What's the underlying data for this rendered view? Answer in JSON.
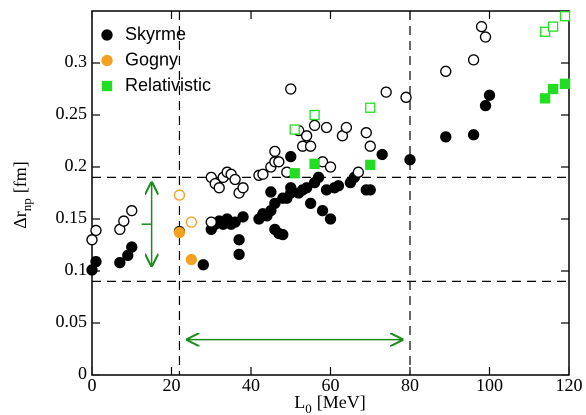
{
  "chart_data": {
    "type": "scatter",
    "xlabel": "L",
    "xlabel_sub": "0",
    "xlabel_unit": "[MeV]",
    "ylabel": "Δr",
    "ylabel_sub": "np",
    "ylabel_unit": "[fm]",
    "xlim": [
      0,
      120
    ],
    "ylim": [
      0,
      0.35
    ],
    "xticks": [
      0,
      20,
      40,
      60,
      80,
      100,
      120
    ],
    "yticks": [
      0,
      0.05,
      0.1,
      0.15,
      0.2,
      0.25,
      0.3
    ],
    "legend": "upper left",
    "vlines": [
      22,
      80
    ],
    "hlines": [
      0.09,
      0.19
    ],
    "arrows": [
      {
        "x": [
          15,
          15
        ],
        "y": [
          0.105,
          0.185
        ],
        "color": "#1a8c1a"
      },
      {
        "x": [
          24,
          78
        ],
        "y": [
          0.034,
          0.034
        ],
        "color": "#1a8c1a"
      }
    ],
    "series": [
      {
        "name": "Skyrme",
        "color": "#000000",
        "marker": "circle",
        "filled": true,
        "x": [
          0,
          1,
          7,
          9,
          10,
          22,
          28,
          30,
          31,
          32,
          33,
          34,
          35,
          36,
          37,
          37,
          38,
          42,
          43,
          44,
          45,
          45,
          46,
          46,
          47,
          48,
          48,
          49,
          50,
          50,
          50,
          52,
          53,
          54,
          55,
          56,
          57,
          58,
          59,
          60,
          61,
          62,
          65,
          66,
          69,
          70,
          73,
          80,
          89,
          96,
          99,
          100
        ],
        "values": [
          0.101,
          0.109,
          0.108,
          0.115,
          0.123,
          0.138,
          0.106,
          0.14,
          0.145,
          0.148,
          0.145,
          0.15,
          0.145,
          0.147,
          0.116,
          0.13,
          0.152,
          0.15,
          0.155,
          0.153,
          0.158,
          0.176,
          0.165,
          0.14,
          0.136,
          0.135,
          0.17,
          0.17,
          0.175,
          0.18,
          0.21,
          0.175,
          0.178,
          0.18,
          0.165,
          0.185,
          0.19,
          0.158,
          0.178,
          0.15,
          0.18,
          0.182,
          0.185,
          0.19,
          0.178,
          0.178,
          0.212,
          0.207,
          0.229,
          0.231,
          0.259,
          0.269
        ]
      },
      {
        "color": "#000000",
        "marker": "circle",
        "filled": false,
        "x": [
          0,
          1,
          7,
          8,
          10,
          30,
          30,
          31,
          32,
          33,
          34,
          35,
          36,
          37,
          38,
          42,
          43,
          45,
          46,
          46,
          47,
          49,
          50,
          52,
          53,
          54,
          55,
          56,
          58,
          59,
          60,
          63,
          64,
          67,
          69,
          70,
          74,
          79,
          89,
          96,
          98,
          99
        ],
        "values": [
          0.13,
          0.139,
          0.14,
          0.148,
          0.158,
          0.147,
          0.19,
          0.184,
          0.18,
          0.19,
          0.195,
          0.193,
          0.188,
          0.175,
          0.18,
          0.192,
          0.193,
          0.2,
          0.205,
          0.215,
          0.205,
          0.195,
          0.275,
          0.235,
          0.22,
          0.23,
          0.22,
          0.24,
          0.205,
          0.238,
          0.2,
          0.23,
          0.238,
          0.195,
          0.233,
          0.22,
          0.272,
          0.267,
          0.292,
          0.303,
          0.335,
          0.325
        ]
      },
      {
        "name": "Gogny",
        "color": "#f5a020",
        "marker": "circle",
        "filled": true,
        "x": [
          22,
          25
        ],
        "values": [
          0.137,
          0.111
        ]
      },
      {
        "color": "#f5a020",
        "marker": "circle",
        "filled": false,
        "x": [
          22,
          25
        ],
        "values": [
          0.173,
          0.147
        ]
      },
      {
        "name": "Relativistic",
        "color": "#22dd22",
        "marker": "square",
        "filled": true,
        "x": [
          51,
          56,
          70,
          114,
          116,
          119
        ],
        "values": [
          0.194,
          0.203,
          0.202,
          0.266,
          0.275,
          0.28
        ]
      },
      {
        "color": "#22dd22",
        "marker": "square",
        "filled": false,
        "x": [
          51,
          56,
          70,
          114,
          116,
          119
        ],
        "values": [
          0.236,
          0.25,
          0.257,
          0.33,
          0.335,
          0.345
        ]
      }
    ]
  }
}
